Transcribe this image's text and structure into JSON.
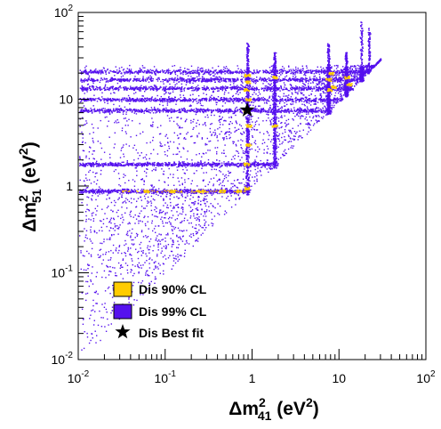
{
  "chart_data": {
    "type": "scatter",
    "x_scale": "log",
    "y_scale": "log",
    "xlim": [
      0.01,
      100
    ],
    "ylim": [
      0.01,
      100
    ],
    "xlabel": {
      "base": "Δm",
      "sup": "2",
      "sub": "41",
      "unit": " (eV",
      "unit_sup": "2",
      "unit_close": ")"
    },
    "ylabel": {
      "base": "Δm",
      "sup": "2",
      "sub": "51",
      "unit": " (eV",
      "unit_sup": "2",
      "unit_close": ")"
    },
    "x_ticks": [
      {
        "value": 0.01,
        "base": "10",
        "exp": "-2"
      },
      {
        "value": 0.1,
        "base": "10",
        "exp": "-1"
      },
      {
        "value": 1,
        "base": "1",
        "exp": ""
      },
      {
        "value": 10,
        "base": "10",
        "exp": ""
      },
      {
        "value": 100,
        "base": "10",
        "exp": "2"
      }
    ],
    "y_ticks": [
      {
        "value": 0.01,
        "base": "10",
        "exp": "-2"
      },
      {
        "value": 0.1,
        "base": "10",
        "exp": "-1"
      },
      {
        "value": 1,
        "base": "1",
        "exp": ""
      },
      {
        "value": 10,
        "base": "10",
        "exp": ""
      },
      {
        "value": 100,
        "base": "10",
        "exp": "2"
      }
    ],
    "series": [
      {
        "name": "Dis 90% CL",
        "color": "#ffcc00",
        "mode": "points",
        "points": [
          [
            0.06,
            0.88
          ],
          [
            0.12,
            0.88
          ],
          [
            0.25,
            0.88
          ],
          [
            0.45,
            0.88
          ],
          [
            0.7,
            0.88
          ],
          [
            0.85,
            0.95
          ],
          [
            0.85,
            1.8
          ],
          [
            0.85,
            7.5
          ],
          [
            0.85,
            13
          ],
          [
            0.87,
            19
          ],
          [
            0.9,
            3
          ],
          [
            0.9,
            5
          ],
          [
            0.88,
            10
          ],
          [
            0.88,
            16
          ],
          [
            1.8,
            18
          ],
          [
            1.8,
            5
          ],
          [
            7.5,
            17
          ],
          [
            7.8,
            13
          ],
          [
            8.5,
            14
          ],
          [
            8,
            20
          ],
          [
            12,
            18
          ],
          [
            13,
            15
          ]
        ]
      },
      {
        "name": "Dis 99% CL",
        "color": "#5511ee",
        "mode": "region",
        "bands_y": [
          0.88,
          1.8,
          7.5,
          10,
          13.5,
          17,
          21
        ],
        "vertical_x": [
          0.88,
          1.8,
          7.5,
          12,
          18
        ],
        "spike_x": [
          0.88,
          1.8,
          7.5,
          12,
          18,
          22
        ],
        "spike_top": [
          45,
          35,
          45,
          35,
          80,
          70
        ]
      },
      {
        "name": "Dis Best fit",
        "marker": "star",
        "color": "#000000",
        "points": [
          [
            0.88,
            7.5
          ]
        ]
      }
    ],
    "grid": false,
    "legend_position": "bottom-left",
    "legend": [
      {
        "label": "Dis 90% CL",
        "color": "#ffcc00",
        "marker": "box"
      },
      {
        "label": "Dis 99% CL",
        "color": "#5511ee",
        "marker": "box"
      },
      {
        "label": "Dis Best fit",
        "color": "#000000",
        "marker": "star"
      }
    ]
  }
}
